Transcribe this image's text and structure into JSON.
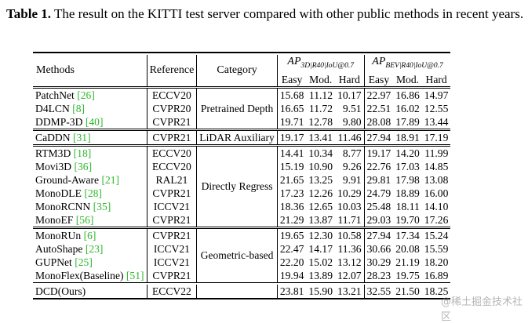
{
  "caption": {
    "label": "Table 1.",
    "text": " The result on the KITTI test server compared with other public methods in recent years."
  },
  "headers": {
    "methods": "Methods",
    "reference": "Reference",
    "category": "Category",
    "ap3d_main": "AP",
    "ap3d_sub": "3D|R40|IoU@0.7",
    "apbev_main": "AP",
    "apbev_sub": "BEV|R40|IoU@0.7",
    "easy": "Easy",
    "mod": "Mod.",
    "hard": "Hard"
  },
  "groups": [
    {
      "category": "Pretrained Depth",
      "rows": [
        {
          "name": "PatchNet ",
          "cite": "[26]",
          "ref": "ECCV20",
          "v": [
            "15.68",
            "11.12",
            "10.17",
            "22.97",
            "16.86",
            "14.97"
          ]
        },
        {
          "name": "D4LCN ",
          "cite": "[8]",
          "ref": "CVPR20",
          "v": [
            "16.65",
            "11.72",
            "9.51",
            "22.51",
            "16.02",
            "12.55"
          ]
        },
        {
          "name": "DDMP-3D ",
          "cite": "[40]",
          "ref": "CVPR21",
          "v": [
            "19.71",
            "12.78",
            "9.80",
            "28.08",
            "17.89",
            "13.44"
          ]
        }
      ]
    },
    {
      "category": "LiDAR Auxiliary",
      "rows": [
        {
          "name": "CaDDN ",
          "cite": "[31]",
          "ref": "CVPR21",
          "v": [
            "19.17",
            "13.41",
            "11.46",
            "27.94",
            "18.91",
            "17.19"
          ]
        }
      ]
    },
    {
      "category": "Directly Regress",
      "rows": [
        {
          "name": "RTM3D ",
          "cite": "[18]",
          "ref": "ECCV20",
          "v": [
            "14.41",
            "10.34",
            "8.77",
            "19.17",
            "14.20",
            "11.99"
          ]
        },
        {
          "name": "Movi3D ",
          "cite": "[36]",
          "ref": "ECCV20",
          "v": [
            "15.19",
            "10.90",
            "9.26",
            "22.76",
            "17.03",
            "14.85"
          ]
        },
        {
          "name": "Ground-Aware ",
          "cite": "[21]",
          "ref": "RAL21",
          "v": [
            "21.65",
            "13.25",
            "9.91",
            "29.81",
            "17.98",
            "13.08"
          ]
        },
        {
          "name": "MonoDLE ",
          "cite": "[28]",
          "ref": "CVPR21",
          "v": [
            "17.23",
            "12.26",
            "10.29",
            "24.79",
            "18.89",
            "16.00"
          ]
        },
        {
          "name": "MonoRCNN ",
          "cite": "[35]",
          "ref": "ICCV21",
          "v": [
            "18.36",
            "12.65",
            "10.03",
            "25.48",
            "18.11",
            "14.10"
          ]
        },
        {
          "name": "MonoEF ",
          "cite": "[56]",
          "ref": "CVPR21",
          "v": [
            "21.29",
            "13.87",
            "11.71",
            "29.03",
            "19.70",
            "17.26"
          ]
        }
      ]
    },
    {
      "category": "Geometric-based",
      "rows": [
        {
          "name": "MonoRUn ",
          "cite": "[6]",
          "ref": "CVPR21",
          "v": [
            "19.65",
            "12.30",
            "10.58",
            "27.94",
            "17.34",
            "15.24"
          ]
        },
        {
          "name": "AutoShape ",
          "cite": "[23]",
          "ref": "ICCV21",
          "v": [
            "22.47",
            "14.17",
            "11.36",
            "30.66",
            "20.08",
            "15.59"
          ]
        },
        {
          "name": "GUPNet ",
          "cite": "[25]",
          "ref": "ICCV21",
          "v": [
            "22.20",
            "15.02",
            "13.12",
            "30.29",
            "21.19",
            "18.20"
          ]
        },
        {
          "name": "MonoFlex(Baseline) ",
          "cite": "[51]",
          "ref": "CVPR21",
          "v": [
            "19.94",
            "13.89",
            "12.07",
            "28.23",
            "19.75",
            "16.89"
          ]
        }
      ]
    }
  ],
  "ours": {
    "name": "DCD(Ours)",
    "ref": "ECCV22",
    "v": [
      "23.81",
      "15.90",
      "13.21",
      "32.55",
      "21.50",
      "18.25"
    ]
  },
  "watermark": "@稀土掘金技术社区"
}
